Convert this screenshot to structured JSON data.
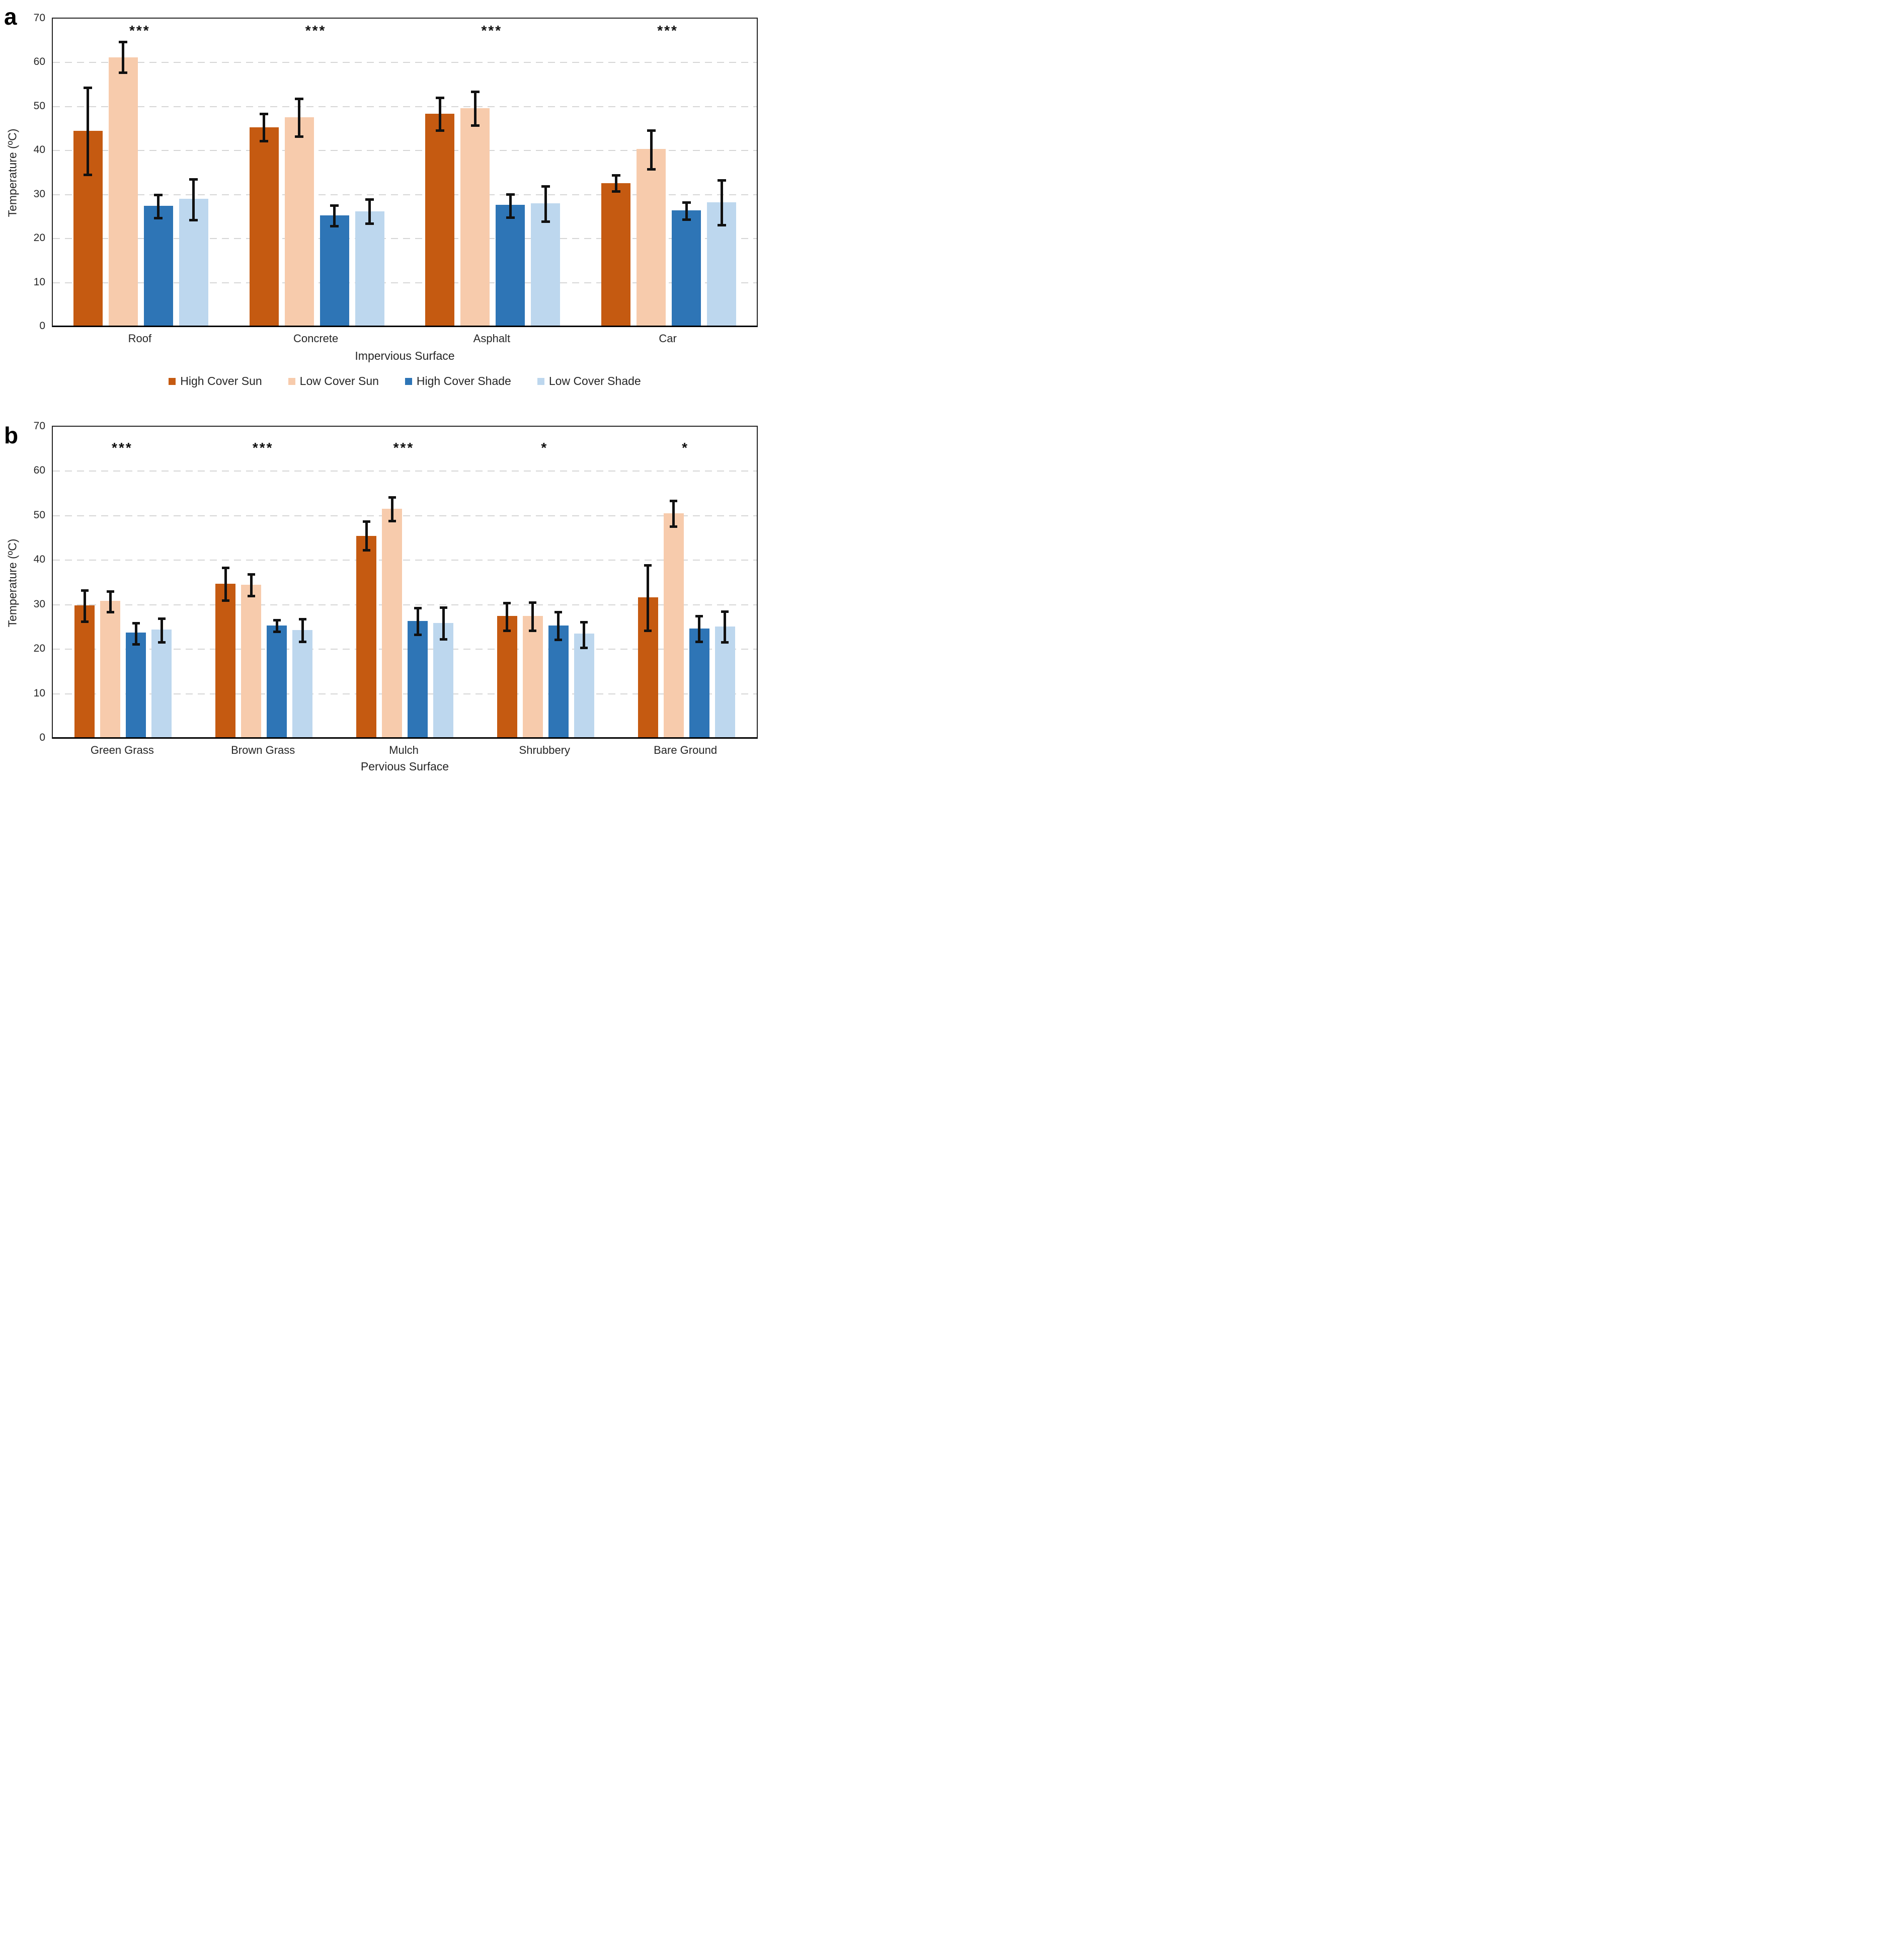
{
  "figure": {
    "panel_a_letter": "a",
    "panel_b_letter": "b",
    "ylabel": "Temperature (ºC)"
  },
  "legend": [
    {
      "label": "High Cover Sun",
      "color": "#C55A11"
    },
    {
      "label": "Low Cover Sun",
      "color": "#F7CBAC"
    },
    {
      "label": "High Cover Shade",
      "color": "#2E75B6"
    },
    {
      "label": "Low Cover Shade",
      "color": "#BDD7EE"
    }
  ],
  "chart_data": [
    {
      "id": "panel-a",
      "type": "bar",
      "panel_letter": "a",
      "xlabel": "Impervious Surface",
      "ylabel": "Temperature (ºC)",
      "ylim": [
        0,
        70
      ],
      "yticks": [
        0,
        10,
        20,
        30,
        40,
        50,
        60,
        70
      ],
      "grid": "dashed horizontal gridlines at 10-60",
      "legend_position": "below plot, horizontal, centered",
      "categories": [
        "Roof",
        "Concrete",
        "Asphalt",
        "Car"
      ],
      "significance": [
        "***",
        "***",
        "***",
        "***"
      ],
      "sig_y": 67,
      "series": [
        {
          "name": "High Cover Sun",
          "color": "#C55A11",
          "values": [
            44.3,
            45.1,
            48.1,
            32.4
          ],
          "err_low": [
            34.5,
            42.2,
            44.6,
            30.7
          ],
          "err_high": [
            54.3,
            48.3,
            52.0,
            34.4
          ]
        },
        {
          "name": "Low Cover Sun",
          "color": "#F7CBAC",
          "values": [
            61.0,
            47.3,
            49.4,
            40.1
          ],
          "err_low": [
            57.7,
            43.2,
            45.7,
            35.8
          ],
          "err_high": [
            64.7,
            51.7,
            53.4,
            44.5
          ]
        },
        {
          "name": "High Cover Shade",
          "color": "#2E75B6",
          "values": [
            27.2,
            25.1,
            27.4,
            26.2
          ],
          "err_low": [
            24.6,
            22.8,
            24.8,
            24.3
          ],
          "err_high": [
            29.9,
            27.5,
            30.0,
            28.2
          ]
        },
        {
          "name": "Low Cover Shade",
          "color": "#BDD7EE",
          "values": [
            28.8,
            26.0,
            27.8,
            28.0
          ],
          "err_low": [
            24.2,
            23.4,
            23.8,
            23.0
          ],
          "err_high": [
            33.5,
            28.9,
            31.9,
            33.2
          ]
        }
      ]
    },
    {
      "id": "panel-b",
      "type": "bar",
      "panel_letter": "b",
      "xlabel": "Pervious Surface",
      "ylabel": "Temperature (ºC)",
      "ylim": [
        0,
        70
      ],
      "yticks": [
        0,
        10,
        20,
        30,
        40,
        50,
        60,
        70
      ],
      "grid": "dashed horizontal gridlines at 10-60",
      "categories": [
        "Green Grass",
        "Brown Grass",
        "Mulch",
        "Shrubbery",
        "Bare Ground"
      ],
      "significance": [
        "***",
        "***",
        "***",
        "*",
        "*"
      ],
      "sig_y": 65,
      "series": [
        {
          "name": "High Cover Sun",
          "color": "#C55A11",
          "values": [
            29.6,
            34.5,
            45.2,
            27.2,
            31.4
          ],
          "err_low": [
            26.2,
            30.9,
            42.2,
            24.2,
            24.1
          ],
          "err_high": [
            33.2,
            38.3,
            48.7,
            30.4,
            38.9
          ]
        },
        {
          "name": "Low Cover Sun",
          "color": "#F7CBAC",
          "values": [
            30.6,
            34.3,
            51.3,
            27.3,
            50.3
          ],
          "err_low": [
            28.3,
            31.9,
            48.8,
            24.2,
            47.5
          ],
          "err_high": [
            33.0,
            36.8,
            54.1,
            30.5,
            53.3
          ]
        },
        {
          "name": "High Cover Shade",
          "color": "#2E75B6",
          "values": [
            23.5,
            25.1,
            26.1,
            25.1,
            24.4
          ],
          "err_low": [
            21.1,
            23.9,
            23.2,
            22.1,
            21.6
          ],
          "err_high": [
            25.8,
            26.5,
            29.2,
            28.3,
            27.4
          ]
        },
        {
          "name": "Low Cover Shade",
          "color": "#BDD7EE",
          "values": [
            24.2,
            24.1,
            25.7,
            23.3,
            24.9
          ],
          "err_low": [
            21.5,
            21.6,
            22.2,
            20.3,
            21.5
          ],
          "err_high": [
            26.9,
            26.8,
            29.4,
            26.1,
            28.4
          ]
        }
      ]
    }
  ]
}
